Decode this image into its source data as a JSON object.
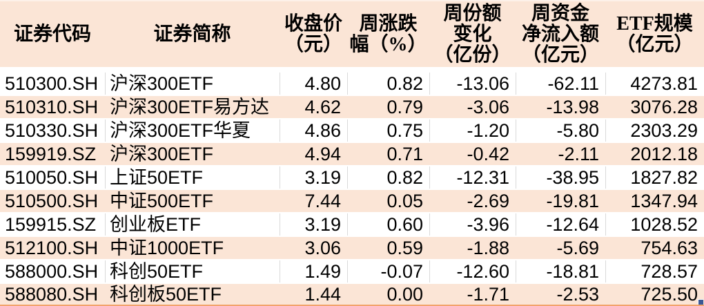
{
  "colors": {
    "header_bg": "#fbe5d6",
    "row_alt_bg": "#fbe5d6",
    "row_bg": "#ffffff",
    "divider": "#d9d9d9",
    "bottom_rule": "#f2a36c",
    "fill_handle": "#3a5795",
    "text": "#000000"
  },
  "table": {
    "columns": [
      {
        "key": "code",
        "label": "证券代码"
      },
      {
        "key": "name",
        "label": "证券简称"
      },
      {
        "key": "close",
        "label": "收盘价\n（元）"
      },
      {
        "key": "chg",
        "label": "周涨跌\n幅（%）"
      },
      {
        "key": "share_chg",
        "label": "周份额\n变化\n（亿份）"
      },
      {
        "key": "net_flow",
        "label": "周资金\n净流入额\n（亿元）"
      },
      {
        "key": "aum",
        "label": "ETF规模\n（亿元）"
      }
    ],
    "rows": [
      {
        "code": "510300.SH",
        "name": "沪深300ETF",
        "close": "4.80",
        "chg": "0.82",
        "share_chg": "-13.06",
        "net_flow": "-62.11",
        "aum": "4273.81"
      },
      {
        "code": "510310.SH",
        "name": "沪深300ETF易方达",
        "close": "4.62",
        "chg": "0.79",
        "share_chg": "-3.06",
        "net_flow": "-13.98",
        "aum": "3076.28"
      },
      {
        "code": "510330.SH",
        "name": "沪深300ETF华夏",
        "close": "4.86",
        "chg": "0.75",
        "share_chg": "-1.20",
        "net_flow": "-5.80",
        "aum": "2303.29"
      },
      {
        "code": "159919.SZ",
        "name": "沪深300ETF",
        "close": "4.94",
        "chg": "0.71",
        "share_chg": "-0.42",
        "net_flow": "-2.11",
        "aum": "2012.18"
      },
      {
        "code": "510050.SH",
        "name": "上证50ETF",
        "close": "3.19",
        "chg": "0.82",
        "share_chg": "-12.31",
        "net_flow": "-38.95",
        "aum": "1827.82"
      },
      {
        "code": "510500.SH",
        "name": "中证500ETF",
        "close": "7.44",
        "chg": "0.05",
        "share_chg": "-2.69",
        "net_flow": "-19.81",
        "aum": "1347.94"
      },
      {
        "code": "159915.SZ",
        "name": "创业板ETF",
        "close": "3.19",
        "chg": "0.60",
        "share_chg": "-3.96",
        "net_flow": "-12.64",
        "aum": "1028.52"
      },
      {
        "code": "512100.SH",
        "name": "中证1000ETF",
        "close": "3.06",
        "chg": "0.59",
        "share_chg": "-1.88",
        "net_flow": "-5.69",
        "aum": "754.63"
      },
      {
        "code": "588000.SH",
        "name": "科创50ETF",
        "close": "1.49",
        "chg": "-0.07",
        "share_chg": "-12.60",
        "net_flow": "-18.81",
        "aum": "728.57"
      },
      {
        "code": "588080.SH",
        "name": "科创板50ETF",
        "close": "1.44",
        "chg": "0.00",
        "share_chg": "-1.71",
        "net_flow": "-2.53",
        "aum": "725.50"
      }
    ]
  }
}
